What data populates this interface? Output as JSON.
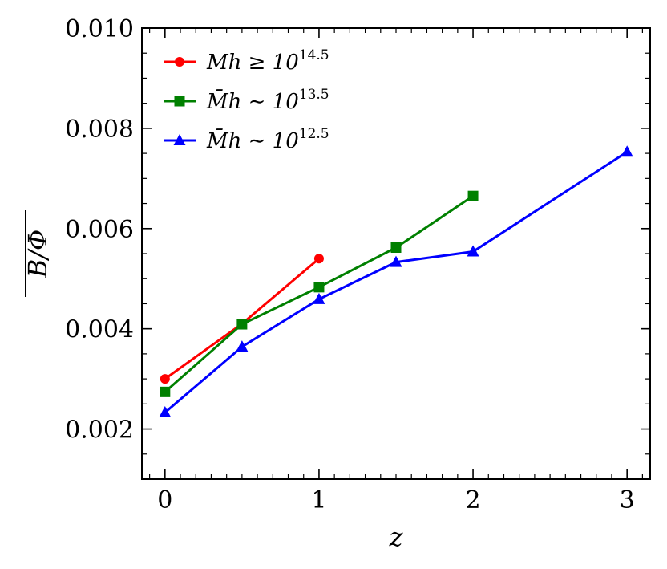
{
  "chart_data": {
    "type": "line",
    "xlabel": "z",
    "ylabel": "B/Φ",
    "xlim": [
      -0.15,
      3.15
    ],
    "ylim": [
      0.001,
      0.01
    ],
    "xticks": [
      0,
      1,
      2,
      3
    ],
    "xtick_labels": [
      "0",
      "1",
      "2",
      "3"
    ],
    "yticks": [
      0.002,
      0.004,
      0.006,
      0.008,
      0.01
    ],
    "ytick_labels": [
      "0.002",
      "0.004",
      "0.006",
      "0.008",
      "0.010"
    ],
    "grid": false,
    "legend_position": "top-left",
    "series": [
      {
        "name": "M_h ≥ 10^14.5",
        "legend_label": "Mh ≥ 10",
        "legend_sup": "14.5",
        "color": "#ff0000",
        "marker": "circle",
        "x": [
          0,
          0.5,
          1
        ],
        "y": [
          0.003,
          0.0041,
          0.0054
        ]
      },
      {
        "name": "M̄_h ~ 10^13.5",
        "legend_label": "M̄h ∼ 10",
        "legend_sup": "13.5",
        "color": "#008000",
        "marker": "square",
        "x": [
          0,
          0.5,
          1,
          1.5,
          2
        ],
        "y": [
          0.00274,
          0.00409,
          0.00483,
          0.00562,
          0.00665
        ]
      },
      {
        "name": "M̄_h ~ 10^12.5",
        "legend_label": "M̄h ∼ 10",
        "legend_sup": "12.5",
        "color": "#0000ff",
        "marker": "triangle",
        "x": [
          0,
          0.5,
          1,
          1.5,
          2,
          3
        ],
        "y": [
          0.00233,
          0.00364,
          0.00459,
          0.00533,
          0.00554,
          0.00753
        ]
      }
    ]
  }
}
